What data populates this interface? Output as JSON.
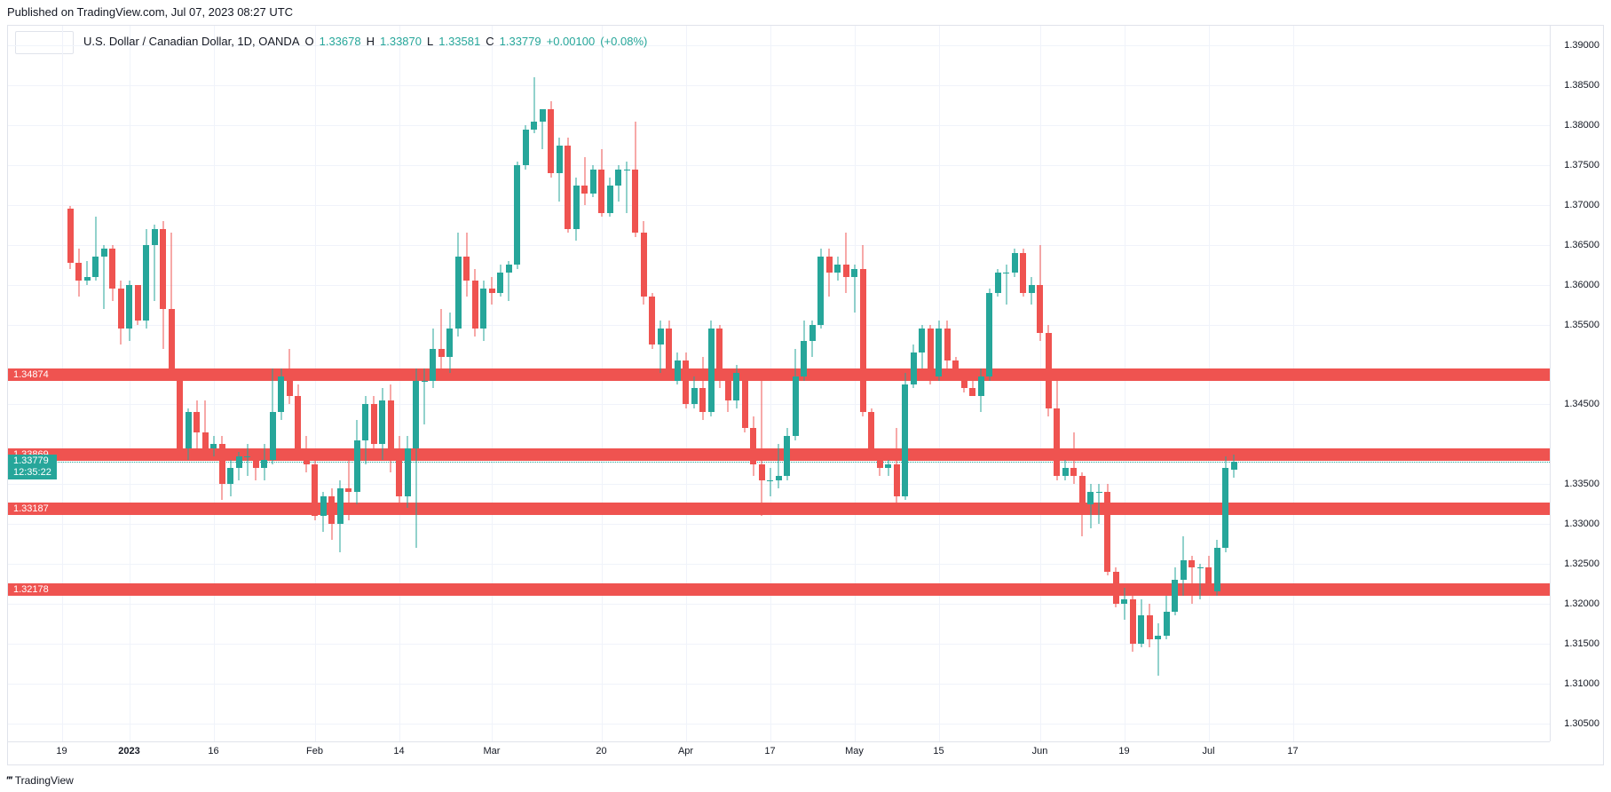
{
  "header": {
    "published_text": "Published on TradingView.com, Jul 07, 2023 08:27 UTC"
  },
  "symbol": {
    "name": "U.S. Dollar / Canadian Dollar, 1D, OANDA",
    "O_label": "O",
    "O": "1.33678",
    "H_label": "H",
    "H": "1.33870",
    "L_label": "L",
    "L": "1.33581",
    "C_label": "C",
    "C": "1.33779",
    "change": "+0.00100",
    "change_pct": "(+0.08%)"
  },
  "chart": {
    "type": "candlestick",
    "background_color": "#ffffff",
    "grid_color": "#f0f3fa",
    "border_color": "#e0e3eb",
    "up_color": "#26a69a",
    "down_color": "#ef5350",
    "text_color": "#131722",
    "y_axis": {
      "min": 1.3025,
      "max": 1.3925,
      "ticks": [
        1.305,
        1.31,
        1.315,
        1.32,
        1.325,
        1.33,
        1.335,
        1.345,
        1.355,
        1.36,
        1.365,
        1.37,
        1.375,
        1.38,
        1.385,
        1.39
      ],
      "tick_labels": [
        "1.30500",
        "1.31000",
        "1.31500",
        "1.32000",
        "1.32500",
        "1.33000",
        "1.33500",
        "1.34500",
        "1.35500",
        "1.36000",
        "1.36500",
        "1.37000",
        "1.37500",
        "1.38000",
        "1.38500",
        "1.39000"
      ]
    },
    "x_axis": {
      "ticks": [
        {
          "idx": -1,
          "label": "19",
          "bold": false
        },
        {
          "idx": 7,
          "label": "2023",
          "bold": true
        },
        {
          "idx": 17,
          "label": "16",
          "bold": false
        },
        {
          "idx": 29,
          "label": "Feb",
          "bold": false
        },
        {
          "idx": 39,
          "label": "14",
          "bold": false
        },
        {
          "idx": 50,
          "label": "Mar",
          "bold": false
        },
        {
          "idx": 63,
          "label": "20",
          "bold": false
        },
        {
          "idx": 73,
          "label": "Apr",
          "bold": false
        },
        {
          "idx": 83,
          "label": "17",
          "bold": false
        },
        {
          "idx": 93,
          "label": "May",
          "bold": false
        },
        {
          "idx": 103,
          "label": "15",
          "bold": false
        },
        {
          "idx": 115,
          "label": "Jun",
          "bold": false
        },
        {
          "idx": 125,
          "label": "19",
          "bold": false
        },
        {
          "idx": 135,
          "label": "Jul",
          "bold": false
        },
        {
          "idx": 145,
          "label": "17",
          "bold": false
        }
      ]
    },
    "horizontal_lines": [
      {
        "value": 1.34874,
        "label": "1.34874",
        "color": "#ef5350",
        "bg": "#ef5350"
      },
      {
        "value": 1.33869,
        "label": "1.33869",
        "color": "#ef5350",
        "bg": "#ef5350"
      },
      {
        "value": 1.33187,
        "label": "1.33187",
        "color": "#ef5350",
        "bg": "#ef5350"
      },
      {
        "value": 1.32178,
        "label": "1.32178",
        "color": "#ef5350",
        "bg": "#ef5350"
      }
    ],
    "current_price_line": {
      "value": 1.33779,
      "label": "1.33779",
      "countdown": "12:35:22",
      "color": "#26a69a",
      "style": "dotted"
    },
    "candle_width": 7,
    "candle_spacing": 9.5,
    "left_padding": 70,
    "candles": [
      {
        "o": 1.3695,
        "h": 1.3699,
        "l": 1.362,
        "c": 1.3628
      },
      {
        "o": 1.3628,
        "h": 1.3645,
        "l": 1.3585,
        "c": 1.3605
      },
      {
        "o": 1.3605,
        "h": 1.363,
        "l": 1.36,
        "c": 1.361
      },
      {
        "o": 1.361,
        "h": 1.3685,
        "l": 1.3605,
        "c": 1.3635
      },
      {
        "o": 1.3635,
        "h": 1.365,
        "l": 1.357,
        "c": 1.3645
      },
      {
        "o": 1.3645,
        "h": 1.365,
        "l": 1.358,
        "c": 1.3595
      },
      {
        "o": 1.3595,
        "h": 1.3605,
        "l": 1.3525,
        "c": 1.3545
      },
      {
        "o": 1.3545,
        "h": 1.3605,
        "l": 1.353,
        "c": 1.36
      },
      {
        "o": 1.36,
        "h": 1.36,
        "l": 1.355,
        "c": 1.3555
      },
      {
        "o": 1.3555,
        "h": 1.367,
        "l": 1.3545,
        "c": 1.365
      },
      {
        "o": 1.365,
        "h": 1.3675,
        "l": 1.358,
        "c": 1.367
      },
      {
        "o": 1.367,
        "h": 1.368,
        "l": 1.352,
        "c": 1.357
      },
      {
        "o": 1.357,
        "h": 1.3665,
        "l": 1.349,
        "c": 1.349
      },
      {
        "o": 1.349,
        "h": 1.3495,
        "l": 1.3385,
        "c": 1.3395
      },
      {
        "o": 1.3395,
        "h": 1.3445,
        "l": 1.338,
        "c": 1.344
      },
      {
        "o": 1.344,
        "h": 1.3455,
        "l": 1.338,
        "c": 1.3415
      },
      {
        "o": 1.3415,
        "h": 1.3455,
        "l": 1.3385,
        "c": 1.3395
      },
      {
        "o": 1.3395,
        "h": 1.341,
        "l": 1.3385,
        "c": 1.34
      },
      {
        "o": 1.34,
        "h": 1.341,
        "l": 1.333,
        "c": 1.335
      },
      {
        "o": 1.335,
        "h": 1.338,
        "l": 1.3335,
        "c": 1.337
      },
      {
        "o": 1.337,
        "h": 1.339,
        "l": 1.3355,
        "c": 1.3385
      },
      {
        "o": 1.3385,
        "h": 1.34,
        "l": 1.336,
        "c": 1.3385
      },
      {
        "o": 1.3385,
        "h": 1.339,
        "l": 1.3355,
        "c": 1.337
      },
      {
        "o": 1.337,
        "h": 1.34,
        "l": 1.3355,
        "c": 1.338
      },
      {
        "o": 1.338,
        "h": 1.3495,
        "l": 1.3375,
        "c": 1.344
      },
      {
        "o": 1.344,
        "h": 1.3495,
        "l": 1.343,
        "c": 1.3485
      },
      {
        "o": 1.3485,
        "h": 1.352,
        "l": 1.345,
        "c": 1.346
      },
      {
        "o": 1.346,
        "h": 1.3475,
        "l": 1.3385,
        "c": 1.339
      },
      {
        "o": 1.339,
        "h": 1.341,
        "l": 1.3365,
        "c": 1.3375
      },
      {
        "o": 1.3375,
        "h": 1.338,
        "l": 1.3305,
        "c": 1.331
      },
      {
        "o": 1.331,
        "h": 1.334,
        "l": 1.329,
        "c": 1.3335
      },
      {
        "o": 1.3335,
        "h": 1.3345,
        "l": 1.328,
        "c": 1.33
      },
      {
        "o": 1.33,
        "h": 1.3355,
        "l": 1.3265,
        "c": 1.3345
      },
      {
        "o": 1.3345,
        "h": 1.3385,
        "l": 1.3305,
        "c": 1.334
      },
      {
        "o": 1.334,
        "h": 1.343,
        "l": 1.3325,
        "c": 1.3405
      },
      {
        "o": 1.3405,
        "h": 1.346,
        "l": 1.3375,
        "c": 1.345
      },
      {
        "o": 1.345,
        "h": 1.346,
        "l": 1.3395,
        "c": 1.34
      },
      {
        "o": 1.34,
        "h": 1.347,
        "l": 1.338,
        "c": 1.3455
      },
      {
        "o": 1.3455,
        "h": 1.3475,
        "l": 1.3365,
        "c": 1.3385
      },
      {
        "o": 1.3385,
        "h": 1.341,
        "l": 1.332,
        "c": 1.3335
      },
      {
        "o": 1.3335,
        "h": 1.341,
        "l": 1.332,
        "c": 1.3395
      },
      {
        "o": 1.3395,
        "h": 1.3495,
        "l": 1.327,
        "c": 1.348
      },
      {
        "o": 1.348,
        "h": 1.3495,
        "l": 1.3425,
        "c": 1.348
      },
      {
        "o": 1.348,
        "h": 1.3545,
        "l": 1.347,
        "c": 1.352
      },
      {
        "o": 1.352,
        "h": 1.357,
        "l": 1.3485,
        "c": 1.351
      },
      {
        "o": 1.351,
        "h": 1.3565,
        "l": 1.349,
        "c": 1.3545
      },
      {
        "o": 1.3545,
        "h": 1.3665,
        "l": 1.3535,
        "c": 1.3635
      },
      {
        "o": 1.3635,
        "h": 1.3665,
        "l": 1.3585,
        "c": 1.3605
      },
      {
        "o": 1.3605,
        "h": 1.362,
        "l": 1.3535,
        "c": 1.3545
      },
      {
        "o": 1.3545,
        "h": 1.3605,
        "l": 1.353,
        "c": 1.3595
      },
      {
        "o": 1.3595,
        "h": 1.361,
        "l": 1.3575,
        "c": 1.359
      },
      {
        "o": 1.359,
        "h": 1.3625,
        "l": 1.3585,
        "c": 1.3615
      },
      {
        "o": 1.3615,
        "h": 1.363,
        "l": 1.358,
        "c": 1.3625
      },
      {
        "o": 1.3625,
        "h": 1.3755,
        "l": 1.362,
        "c": 1.375
      },
      {
        "o": 1.375,
        "h": 1.38,
        "l": 1.3745,
        "c": 1.3795
      },
      {
        "o": 1.3795,
        "h": 1.386,
        "l": 1.379,
        "c": 1.3805
      },
      {
        "o": 1.3805,
        "h": 1.382,
        "l": 1.377,
        "c": 1.382
      },
      {
        "o": 1.382,
        "h": 1.383,
        "l": 1.3735,
        "c": 1.374
      },
      {
        "o": 1.374,
        "h": 1.3785,
        "l": 1.3705,
        "c": 1.3775
      },
      {
        "o": 1.3775,
        "h": 1.3785,
        "l": 1.3665,
        "c": 1.367
      },
      {
        "o": 1.367,
        "h": 1.3735,
        "l": 1.3655,
        "c": 1.3725
      },
      {
        "o": 1.3725,
        "h": 1.376,
        "l": 1.37,
        "c": 1.3715
      },
      {
        "o": 1.3715,
        "h": 1.375,
        "l": 1.371,
        "c": 1.3745
      },
      {
        "o": 1.3745,
        "h": 1.377,
        "l": 1.3685,
        "c": 1.369
      },
      {
        "o": 1.369,
        "h": 1.3735,
        "l": 1.3685,
        "c": 1.3725
      },
      {
        "o": 1.3725,
        "h": 1.375,
        "l": 1.3705,
        "c": 1.3745
      },
      {
        "o": 1.3745,
        "h": 1.3755,
        "l": 1.369,
        "c": 1.3745
      },
      {
        "o": 1.3745,
        "h": 1.3805,
        "l": 1.366,
        "c": 1.3665
      },
      {
        "o": 1.3665,
        "h": 1.368,
        "l": 1.3575,
        "c": 1.3585
      },
      {
        "o": 1.3585,
        "h": 1.359,
        "l": 1.352,
        "c": 1.3525
      },
      {
        "o": 1.3525,
        "h": 1.3555,
        "l": 1.349,
        "c": 1.3545
      },
      {
        "o": 1.3545,
        "h": 1.3555,
        "l": 1.348,
        "c": 1.348
      },
      {
        "o": 1.348,
        "h": 1.3515,
        "l": 1.3475,
        "c": 1.3505
      },
      {
        "o": 1.3505,
        "h": 1.3515,
        "l": 1.3445,
        "c": 1.345
      },
      {
        "o": 1.345,
        "h": 1.3485,
        "l": 1.3445,
        "c": 1.347
      },
      {
        "o": 1.347,
        "h": 1.351,
        "l": 1.343,
        "c": 1.344
      },
      {
        "o": 1.344,
        "h": 1.3555,
        "l": 1.3435,
        "c": 1.3545
      },
      {
        "o": 1.3545,
        "h": 1.355,
        "l": 1.347,
        "c": 1.3485
      },
      {
        "o": 1.3485,
        "h": 1.3495,
        "l": 1.344,
        "c": 1.3455
      },
      {
        "o": 1.3455,
        "h": 1.35,
        "l": 1.3445,
        "c": 1.349
      },
      {
        "o": 1.349,
        "h": 1.3495,
        "l": 1.3415,
        "c": 1.342
      },
      {
        "o": 1.342,
        "h": 1.3435,
        "l": 1.336,
        "c": 1.3375
      },
      {
        "o": 1.3375,
        "h": 1.348,
        "l": 1.331,
        "c": 1.3355
      },
      {
        "o": 1.3355,
        "h": 1.337,
        "l": 1.3335,
        "c": 1.3355
      },
      {
        "o": 1.3355,
        "h": 1.34,
        "l": 1.3345,
        "c": 1.336
      },
      {
        "o": 1.336,
        "h": 1.342,
        "l": 1.3355,
        "c": 1.341
      },
      {
        "o": 1.341,
        "h": 1.352,
        "l": 1.3405,
        "c": 1.3485
      },
      {
        "o": 1.3485,
        "h": 1.3555,
        "l": 1.348,
        "c": 1.353
      },
      {
        "o": 1.353,
        "h": 1.3555,
        "l": 1.351,
        "c": 1.355
      },
      {
        "o": 1.355,
        "h": 1.3645,
        "l": 1.3545,
        "c": 1.3635
      },
      {
        "o": 1.3635,
        "h": 1.3645,
        "l": 1.3585,
        "c": 1.3615
      },
      {
        "o": 1.3615,
        "h": 1.3635,
        "l": 1.3605,
        "c": 1.3625
      },
      {
        "o": 1.3625,
        "h": 1.3665,
        "l": 1.359,
        "c": 1.361
      },
      {
        "o": 1.361,
        "h": 1.3625,
        "l": 1.3565,
        "c": 1.362
      },
      {
        "o": 1.362,
        "h": 1.365,
        "l": 1.3435,
        "c": 1.344
      },
      {
        "o": 1.344,
        "h": 1.3445,
        "l": 1.338,
        "c": 1.338
      },
      {
        "o": 1.338,
        "h": 1.3385,
        "l": 1.336,
        "c": 1.337
      },
      {
        "o": 1.337,
        "h": 1.338,
        "l": 1.336,
        "c": 1.3375
      },
      {
        "o": 1.3375,
        "h": 1.342,
        "l": 1.3315,
        "c": 1.3335
      },
      {
        "o": 1.3335,
        "h": 1.349,
        "l": 1.333,
        "c": 1.3475
      },
      {
        "o": 1.3475,
        "h": 1.3525,
        "l": 1.347,
        "c": 1.3515
      },
      {
        "o": 1.3515,
        "h": 1.355,
        "l": 1.3495,
        "c": 1.3545
      },
      {
        "o": 1.3545,
        "h": 1.355,
        "l": 1.3475,
        "c": 1.3485
      },
      {
        "o": 1.3485,
        "h": 1.3555,
        "l": 1.348,
        "c": 1.3545
      },
      {
        "o": 1.3545,
        "h": 1.3555,
        "l": 1.349,
        "c": 1.3505
      },
      {
        "o": 1.3505,
        "h": 1.351,
        "l": 1.348,
        "c": 1.3485
      },
      {
        "o": 1.3485,
        "h": 1.349,
        "l": 1.3465,
        "c": 1.347
      },
      {
        "o": 1.347,
        "h": 1.3485,
        "l": 1.346,
        "c": 1.346
      },
      {
        "o": 1.346,
        "h": 1.3495,
        "l": 1.344,
        "c": 1.3485
      },
      {
        "o": 1.3485,
        "h": 1.3595,
        "l": 1.348,
        "c": 1.359
      },
      {
        "o": 1.359,
        "h": 1.362,
        "l": 1.3585,
        "c": 1.3615
      },
      {
        "o": 1.3615,
        "h": 1.3625,
        "l": 1.3575,
        "c": 1.3615
      },
      {
        "o": 1.3615,
        "h": 1.3645,
        "l": 1.361,
        "c": 1.364
      },
      {
        "o": 1.364,
        "h": 1.3645,
        "l": 1.3585,
        "c": 1.359
      },
      {
        "o": 1.359,
        "h": 1.361,
        "l": 1.3575,
        "c": 1.36
      },
      {
        "o": 1.36,
        "h": 1.365,
        "l": 1.353,
        "c": 1.354
      },
      {
        "o": 1.354,
        "h": 1.355,
        "l": 1.3435,
        "c": 1.3445
      },
      {
        "o": 1.3445,
        "h": 1.3485,
        "l": 1.3355,
        "c": 1.336
      },
      {
        "o": 1.336,
        "h": 1.338,
        "l": 1.3355,
        "c": 1.337
      },
      {
        "o": 1.337,
        "h": 1.3415,
        "l": 1.335,
        "c": 1.336
      },
      {
        "o": 1.336,
        "h": 1.3365,
        "l": 1.3285,
        "c": 1.3325
      },
      {
        "o": 1.3325,
        "h": 1.335,
        "l": 1.3295,
        "c": 1.334
      },
      {
        "o": 1.334,
        "h": 1.335,
        "l": 1.33,
        "c": 1.334
      },
      {
        "o": 1.334,
        "h": 1.335,
        "l": 1.3235,
        "c": 1.324
      },
      {
        "o": 1.324,
        "h": 1.3245,
        "l": 1.3195,
        "c": 1.32
      },
      {
        "o": 1.32,
        "h": 1.322,
        "l": 1.318,
        "c": 1.3205
      },
      {
        "o": 1.3205,
        "h": 1.322,
        "l": 1.314,
        "c": 1.315
      },
      {
        "o": 1.315,
        "h": 1.3205,
        "l": 1.3145,
        "c": 1.3185
      },
      {
        "o": 1.3185,
        "h": 1.32,
        "l": 1.3145,
        "c": 1.3155
      },
      {
        "o": 1.3155,
        "h": 1.3175,
        "l": 1.311,
        "c": 1.316
      },
      {
        "o": 1.316,
        "h": 1.321,
        "l": 1.3155,
        "c": 1.319
      },
      {
        "o": 1.319,
        "h": 1.3245,
        "l": 1.3185,
        "c": 1.323
      },
      {
        "o": 1.323,
        "h": 1.3285,
        "l": 1.321,
        "c": 1.3255
      },
      {
        "o": 1.3255,
        "h": 1.326,
        "l": 1.32,
        "c": 1.3245
      },
      {
        "o": 1.3245,
        "h": 1.325,
        "l": 1.3205,
        "c": 1.3245
      },
      {
        "o": 1.3245,
        "h": 1.326,
        "l": 1.321,
        "c": 1.3215
      },
      {
        "o": 1.3215,
        "h": 1.328,
        "l": 1.321,
        "c": 1.327
      },
      {
        "o": 1.327,
        "h": 1.3385,
        "l": 1.3265,
        "c": 1.337
      },
      {
        "o": 1.33678,
        "h": 1.3387,
        "l": 1.33581,
        "c": 1.33779
      }
    ]
  },
  "watermark": {
    "text": "TradingView"
  }
}
